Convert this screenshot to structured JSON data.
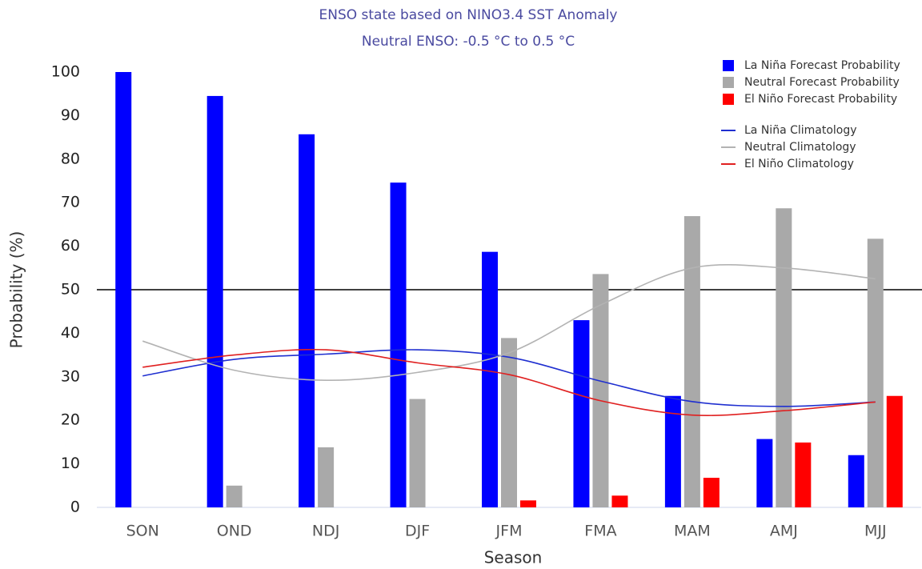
{
  "chart_data": {
    "type": "bar",
    "title": "ENSO state based on NINO3.4 SST Anomaly",
    "subtitle": "Neutral ENSO: -0.5 °C to 0.5 °C",
    "x_label": "Season",
    "y_label": "Probability (%)",
    "categories": [
      "SON",
      "OND",
      "NDJ",
      "DJF",
      "JFM",
      "FMA",
      "MAM",
      "AMJ",
      "MJJ"
    ],
    "series": [
      {
        "name": "La Niña Forecast Probability",
        "color": "#0000ff",
        "type": "bar",
        "values": [
          100,
          94.5,
          85.7,
          74.6,
          58.7,
          43,
          25.6,
          15.7,
          12
        ]
      },
      {
        "name": "Neutral Forecast Probability",
        "color": "#a9a9a9",
        "type": "bar",
        "values": [
          0,
          5,
          13.8,
          24.9,
          38.9,
          53.6,
          66.9,
          68.7,
          61.7
        ]
      },
      {
        "name": "El Niño Forecast Probability",
        "color": "#ff0000",
        "type": "bar",
        "values": [
          0,
          0,
          0,
          0,
          1.6,
          2.7,
          6.8,
          14.9,
          25.6
        ]
      },
      {
        "name": "La Niña Climatology",
        "color": "#1f2fd0",
        "type": "line",
        "values": [
          30.2,
          34,
          35.2,
          36.2,
          34.5,
          29,
          24.3,
          23.2,
          24.2
        ]
      },
      {
        "name": "Neutral Climatology",
        "color": "#b3b3b3",
        "type": "line",
        "values": [
          38.2,
          31.5,
          29.2,
          31,
          35.5,
          46.5,
          55,
          55,
          52.5
        ]
      },
      {
        "name": "El Niño Climatology",
        "color": "#e02020",
        "type": "line",
        "values": [
          32.2,
          35,
          36.2,
          33.2,
          30.5,
          24.5,
          21.2,
          22.2,
          24.2
        ]
      }
    ],
    "reference_line": 50,
    "ylim": [
      0,
      100
    ],
    "yticks": [
      0,
      10,
      20,
      30,
      40,
      50,
      60,
      70,
      80,
      90,
      100
    ]
  }
}
